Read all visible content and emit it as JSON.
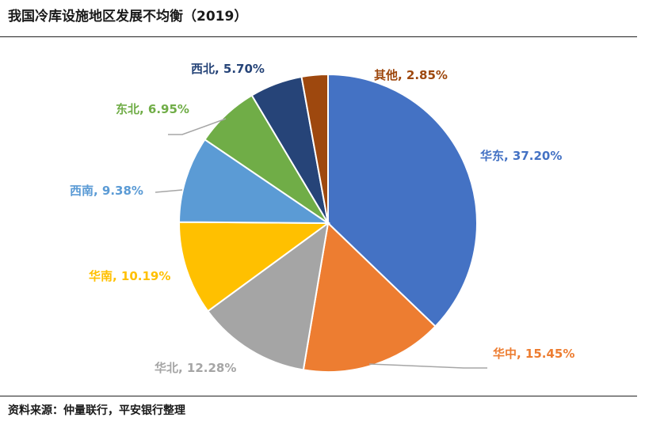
{
  "title": "我国冷库设施地区发展不均衡（2019）",
  "source": "资料来源：仲量联行，平安银行整理",
  "chart_data": {
    "type": "pie",
    "title": "我国冷库设施地区发展不均衡（2019）",
    "start_angle_deg": 0,
    "direction": "clockwise",
    "slices": [
      {
        "name": "华东",
        "value": 37.2,
        "label": "华东, 37.20%",
        "color": "#4472C4"
      },
      {
        "name": "华中",
        "value": 15.45,
        "label": "华中, 15.45%",
        "color": "#ED7D31"
      },
      {
        "name": "华北",
        "value": 12.28,
        "label": "华北, 12.28%",
        "color": "#A5A5A5"
      },
      {
        "name": "华南",
        "value": 10.19,
        "label": "华南, 10.19%",
        "color": "#FFC000"
      },
      {
        "name": "西南",
        "value": 9.38,
        "label": "西南, 9.38%",
        "color": "#5B9BD5"
      },
      {
        "name": "东北",
        "value": 6.95,
        "label": "东北, 6.95%",
        "color": "#70AD47"
      },
      {
        "name": "西北",
        "value": 5.7,
        "label": "西北, 5.70%",
        "color": "#264478"
      },
      {
        "name": "其他",
        "value": 2.85,
        "label": "其他, 2.85%",
        "color": "#9E480E"
      }
    ]
  }
}
